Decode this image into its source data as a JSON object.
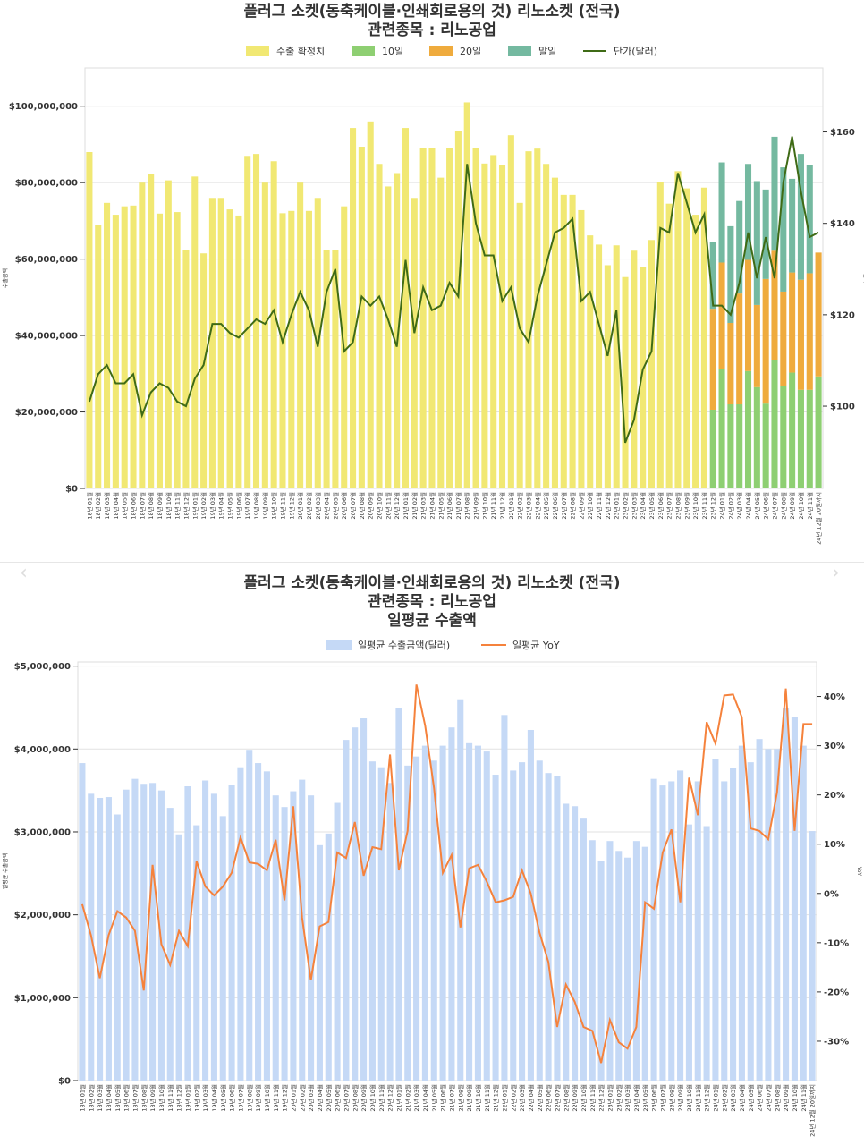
{
  "chart_data": [
    {
      "type": "bar",
      "title": "플러그 소켓(동축케이블·인쇄회로용의 것) 리노소켓 (전국)",
      "subtitle": "관련종목 : 리노공업",
      "ylabel": "수출금액",
      "y2label": "단가",
      "ylim": [
        0,
        110000000
      ],
      "y2lim": [
        82,
        174
      ],
      "yticks": [
        "$0",
        "$20,000,000",
        "$40,000,000",
        "$60,000,000",
        "$80,000,000",
        "$100,000,000"
      ],
      "y2ticks": [
        "$100",
        "$120",
        "$140",
        "$160"
      ],
      "legend": [
        "수출 확정치",
        "10일",
        "20일",
        "말일",
        "단가(달러)"
      ],
      "legend_position": "top",
      "colors": {
        "confirmed": "#f1e873",
        "d10": "#8ecf72",
        "d20": "#efab3d",
        "end": "#74b9a0",
        "price": "#3f6b16"
      },
      "categories": [
        "18년 01월",
        "18년 02월",
        "18년 03월",
        "18년 04월",
        "18년 05월",
        "18년 06월",
        "18년 07월",
        "18년 08월",
        "18년 09월",
        "18년 10월",
        "18년 11월",
        "18년 12월",
        "19년 01월",
        "19년 02월",
        "19년 03월",
        "19년 04월",
        "19년 05월",
        "19년 06월",
        "19년 07월",
        "19년 08월",
        "19년 09월",
        "19년 10월",
        "19년 11월",
        "19년 12월",
        "20년 01월",
        "20년 02월",
        "20년 03월",
        "20년 04월",
        "20년 05월",
        "20년 06월",
        "20년 07월",
        "20년 08월",
        "20년 09월",
        "20년 10월",
        "20년 11월",
        "20년 12월",
        "21년 01월",
        "21년 02월",
        "21년 03월",
        "21년 04월",
        "21년 05월",
        "21년 06월",
        "21년 07월",
        "21년 08월",
        "21년 09월",
        "21년 10월",
        "21년 11월",
        "21년 12월",
        "22년 01월",
        "22년 02월",
        "22년 03월",
        "22년 04월",
        "22년 05월",
        "22년 06월",
        "22년 07월",
        "22년 08월",
        "22년 09월",
        "22년 10월",
        "22년 11월",
        "22년 12월",
        "23년 01월",
        "23년 02월",
        "23년 03월",
        "23년 04월",
        "23년 05월",
        "23년 06월",
        "23년 07월",
        "23년 08월",
        "23년 09월",
        "23년 10월",
        "23년 11월",
        "23년 12월",
        "24년 01월",
        "24년 02월",
        "24년 03월",
        "24년 04월",
        "24년 05월",
        "24년 06월",
        "24년 07월",
        "24년 08월",
        "24년 09월",
        "24년 10월",
        "24년 11월",
        "24년 12월 20일까지"
      ],
      "series": [
        {
          "name": "수출 확정치",
          "unit": "million USD",
          "values": [
            88,
            69,
            74.7,
            71.6,
            73.8,
            74,
            80,
            82.3,
            71.9,
            80.6,
            72.3,
            62.4,
            81.6,
            61.5,
            76,
            76,
            73,
            71.4,
            87,
            87.5,
            80,
            85.6,
            72,
            72.6,
            80,
            72.6,
            76,
            62.4,
            62.4,
            73.8,
            94.3,
            89.4,
            96,
            84.9,
            79,
            82.5,
            94.3,
            76,
            89,
            89,
            81.3,
            89,
            93.6,
            101,
            89,
            85,
            87.2,
            84.6,
            92.4,
            74.7,
            88.2,
            88.9,
            84.9,
            81.3,
            76.8,
            76.8,
            72.8,
            66.2,
            63.8,
            58.4,
            63.6,
            55.3,
            62.2,
            57.9,
            65,
            80.1,
            74.5,
            83,
            78.5,
            71.6,
            78.7,
            0,
            0,
            0,
            0,
            0,
            0,
            0,
            0,
            0,
            0,
            0,
            0,
            0
          ]
        },
        {
          "name": "10일",
          "unit": "million USD",
          "values": [
            0,
            0,
            0,
            0,
            0,
            0,
            0,
            0,
            0,
            0,
            0,
            0,
            0,
            0,
            0,
            0,
            0,
            0,
            0,
            0,
            0,
            0,
            0,
            0,
            0,
            0,
            0,
            0,
            0,
            0,
            0,
            0,
            0,
            0,
            0,
            0,
            0,
            0,
            0,
            0,
            0,
            0,
            0,
            0,
            0,
            0,
            0,
            0,
            0,
            0,
            0,
            0,
            0,
            0,
            0,
            0,
            0,
            0,
            0,
            0,
            0,
            0,
            0,
            0,
            0,
            0,
            0,
            0,
            0,
            0,
            0,
            20.6,
            31.2,
            22,
            22,
            30.7,
            26.5,
            22.2,
            33.6,
            26.9,
            30.3,
            25.8,
            25.8,
            29.3
          ]
        },
        {
          "name": "20일",
          "unit": "million USD",
          "values": [
            0,
            0,
            0,
            0,
            0,
            0,
            0,
            0,
            0,
            0,
            0,
            0,
            0,
            0,
            0,
            0,
            0,
            0,
            0,
            0,
            0,
            0,
            0,
            0,
            0,
            0,
            0,
            0,
            0,
            0,
            0,
            0,
            0,
            0,
            0,
            0,
            0,
            0,
            0,
            0,
            0,
            0,
            0,
            0,
            0,
            0,
            0,
            0,
            0,
            0,
            0,
            0,
            0,
            0,
            0,
            0,
            0,
            0,
            0,
            0,
            0,
            0,
            0,
            0,
            0,
            0,
            0,
            0,
            0,
            0,
            0,
            26.4,
            27.9,
            21.3,
            29,
            29.1,
            21.5,
            32.6,
            28.6,
            24.6,
            26.2,
            28.8,
            30.5,
            32.4
          ]
        },
        {
          "name": "말일",
          "unit": "million USD",
          "values": [
            0,
            0,
            0,
            0,
            0,
            0,
            0,
            0,
            0,
            0,
            0,
            0,
            0,
            0,
            0,
            0,
            0,
            0,
            0,
            0,
            0,
            0,
            0,
            0,
            0,
            0,
            0,
            0,
            0,
            0,
            0,
            0,
            0,
            0,
            0,
            0,
            0,
            0,
            0,
            0,
            0,
            0,
            0,
            0,
            0,
            0,
            0,
            0,
            0,
            0,
            0,
            0,
            0,
            0,
            0,
            0,
            0,
            0,
            0,
            0,
            0,
            0,
            0,
            0,
            0,
            0,
            0,
            0,
            0,
            0,
            0,
            17.5,
            26.2,
            25.3,
            24.2,
            25.1,
            32.4,
            23.4,
            29.8,
            32.5,
            24.5,
            32.9,
            28.3,
            0
          ]
        },
        {
          "name": "단가(달러)",
          "axis": "right",
          "values": [
            101,
            107,
            109,
            105,
            105,
            107,
            98,
            103,
            105,
            104,
            101,
            100,
            106,
            109,
            118,
            118,
            116,
            115,
            117,
            119,
            118,
            121,
            114,
            120,
            125,
            121,
            113,
            125,
            130,
            112,
            114,
            124,
            122,
            124,
            119,
            113,
            132,
            116,
            126,
            121,
            122,
            127,
            124,
            153,
            140,
            133,
            133,
            123,
            126,
            117,
            114,
            124,
            131,
            138,
            139,
            141,
            123,
            125,
            118,
            111,
            121,
            92,
            97,
            108,
            112,
            139,
            138,
            151,
            144.6,
            138,
            142,
            122,
            122,
            120,
            127,
            138,
            128,
            137,
            128,
            149,
            159,
            147,
            137,
            138
          ]
        }
      ]
    },
    {
      "type": "bar",
      "title": "플러그 소켓(동축케이블·인쇄회로용의 것) 리노소켓 (전국)",
      "subtitle": "관련종목 : 리노공업",
      "subtitle2": "일평균 수출액",
      "ylabel": "일평균 수출금액",
      "y2label": "YoY",
      "ylim": [
        0,
        5050000
      ],
      "y2lim": [
        -38,
        47
      ],
      "yticks": [
        "$0",
        "$1,000,000",
        "$2,000,000",
        "$3,000,000",
        "$4,000,000",
        "$5,000,000"
      ],
      "y2ticks": [
        "-30%",
        "-20%",
        "-10%",
        "0%",
        "10%",
        "20%",
        "30%",
        "40%"
      ],
      "legend": [
        "일평균 수출금액(달러)",
        "일평균 YoY"
      ],
      "legend_position": "top",
      "colors": {
        "bar": "#c5d9f6",
        "line": "#f5823c"
      },
      "series": [
        {
          "name": "일평균 수출금액(달러)",
          "unit": "million USD",
          "values": [
            3.83,
            3.46,
            3.41,
            3.42,
            3.21,
            3.51,
            3.64,
            3.58,
            3.59,
            3.5,
            3.29,
            2.97,
            3.55,
            3.08,
            3.62,
            3.46,
            3.19,
            3.57,
            3.78,
            3.99,
            3.83,
            3.73,
            3.44,
            3.3,
            3.49,
            3.63,
            3.44,
            2.84,
            2.98,
            3.35,
            4.11,
            4.26,
            4.37,
            3.85,
            3.78,
            3.59,
            4.49,
            3.8,
            3.91,
            4.04,
            3.86,
            4.04,
            4.26,
            4.6,
            4.07,
            4.04,
            3.97,
            3.69,
            4.41,
            3.74,
            3.84,
            4.23,
            3.86,
            3.71,
            3.67,
            3.34,
            3.31,
            3.16,
            2.9,
            2.65,
            2.89,
            2.77,
            2.69,
            2.89,
            2.82,
            3.64,
            3.56,
            3.61,
            3.74,
            3.09,
            3.61,
            3.07,
            3.88,
            3.61,
            3.77,
            4.04,
            3.84,
            4.12,
            4,
            4,
            4.49,
            4.39,
            4.04,
            3.01
          ]
        },
        {
          "name": "일평균 YoY",
          "axis": "right",
          "unit": "percent",
          "values": [
            -2.2,
            -8.5,
            -17.2,
            -8.5,
            -3.6,
            -4.9,
            -7.6,
            -19.7,
            5.8,
            -10.3,
            -14.5,
            -7.6,
            -10.7,
            6.5,
            1.4,
            -0.4,
            1.4,
            4.2,
            11.4,
            6.3,
            6,
            4.7,
            10.9,
            -1.4,
            17.7,
            -4.9,
            -17.6,
            -6.7,
            -5.8,
            8.3,
            7.2,
            14.5,
            3.6,
            9.4,
            9,
            28.2,
            4.7,
            12.7,
            42.4,
            34,
            21.4,
            4.2,
            7.8,
            -6.9,
            5.1,
            5.8,
            2.4,
            -1.8,
            -1.4,
            -0.7,
            4.7,
            0,
            -8,
            -13.9,
            -27.1,
            -18.5,
            -22,
            -27.1,
            -27.9,
            -34.4,
            -25.7,
            -30.2,
            -31.5,
            -27.1,
            -1.8,
            -3.1,
            8.3,
            13,
            -1.8,
            23.5,
            15.9,
            34.8,
            30.4,
            40.2,
            40.4,
            35.8,
            13.2,
            12.7,
            11,
            20.5,
            41.6,
            12.7,
            34.4,
            34.4
          ]
        }
      ]
    }
  ],
  "carousel": {
    "prev_icon": "chevron-left-icon",
    "next_icon": "chevron-right-icon",
    "prev": "‹",
    "next": "›"
  }
}
